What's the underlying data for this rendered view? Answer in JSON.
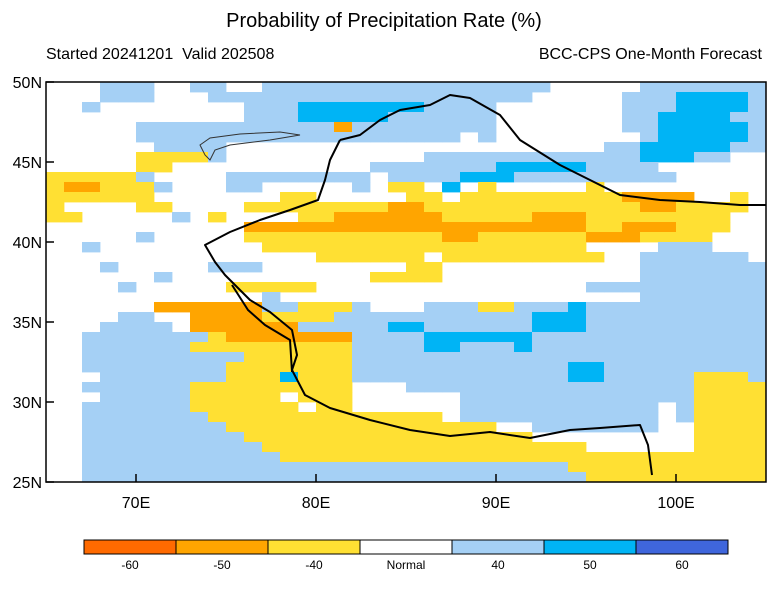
{
  "header": {
    "title": "Probability of Precipitation Rate (%)",
    "started": "Started 20241201",
    "valid": "Valid 202508",
    "model": "BCC-CPS One-Month Forecast"
  },
  "map": {
    "lon_range": [
      65,
      105
    ],
    "lat_range": [
      25,
      50
    ],
    "lat_labels": [
      "50N",
      "45N",
      "40N",
      "35N",
      "30N",
      "25N"
    ],
    "lon_labels": [
      "70E",
      "80E",
      "90E",
      "100E"
    ],
    "grid_deg": 1.0
  },
  "colorbar": {
    "classes": [
      {
        "label": "-60",
        "color": "#ff6a00"
      },
      {
        "label": "-50",
        "color": "#ffa500"
      },
      {
        "label": "-40",
        "color": "#ffe033"
      },
      {
        "label": "Normal",
        "color": "#ffffff"
      },
      {
        "label": "40",
        "color": "#a5d0f5"
      },
      {
        "label": "50",
        "color": "#00b4f5"
      },
      {
        "label": "60",
        "color": "#3f66dc"
      }
    ]
  },
  "rows": [
    "...bbb..bb..bbbbbbbbbbbbbbbb.....bbbbbbb",
    "...bbb...bbbbbbbbbbbbbbbbbb.....bbbccccb",
    "..b........bbbcccccccbbbb.......bbbccccb",
    "...........bbbcccccbbbbbb.......bbccccbb",
    ".....bbbbbbbbbbbobbbbbbbb.......bbcccccb",
    ".....bbbbbbbbbbbbbbbbbb.b........bcccccb",
    "......bbbb.....................bbcccccbb",
    ".....yyyyb...........bbbbbbbbbbbbcccbb..",
    ".....yy...........bbbbbbbcccccbbbb......",
    "yyyyyb....bbbbbbbb.bbbbcccbbbbbbbbb.....",
    "yooyyyb...bb.....b.yy.c.y.....y.........",
    "yyyyyy.......yy.....yy.yyyyyyyyyoooo..y.",
    "y....yy....yyyyyyyyooyyyyyyyyyyyyooyyyy.",
    "yy.....b.y....yyooooooyyyyyoooyyyyyyyy..",
    "...........oooooooooooooooooooyyoooyyy..",
    ".....b.....yyyyyyyyyyyooyyyyyyoooyyyy...",
    "..b.........yyyyyyyyyyyyyyyyyy....bbb...",
    "...............yyyyyy.yyyyyyyyy..bbbbbb.",
    "...b.....bbb........yy...........bbbbbbb",
    "......b...........yyyy...........bbbbbbb",
    "....b.....yyyyy...............bbbbbbbbbb",
    "............b....................bbbbbbb",
    "......oooooobbyyyb...bbbyybbbcbbbbbbbbbb",
    "....bb..ooooyyyybbbbbbbbbbbcccbbbbbbbbbb",
    "...bbbb.oooooobbbbbccbbbbbbcccbbbbbbbbbb",
    "..bbbbbbbyooooooobbbbccccccbbbbbbbbbbbbb",
    "..bbbbbbyyyyyyyyybbbbccbbbcbbbbbbbbbbbbb",
    "..bbbbbbbbbyyyyyybbbbbbbbbbbbbbbbbbbbbbb",
    "..bbbbbbbbyyyyyyybbbbbbbbbbbbccbbbbbbbbb",
    "...bbbbbbbyyycyyybbbbbbbbbbbbccbbbbbyyyb",
    "..bbbbbbyyyyyyyyy...bbbbbbbbbbbbbbbbyyyy",
    "...bbbbbyyyyy.yyy......bbbbbbbbbbbbbyyyy",
    "..bbbbbbyyyyyy.yy......bbbbbbbbbbb.byyyy",
    "..bbbbbbbyyyyyyyyyyyyy.bbbbbbbbbbb.byyyy",
    "..bbbbbbbbyyyyyyyyyyyyyyy..bbbbbbb..yyyy",
    "..bbbbbbbbbyyyyyyyyyyyyyyyy.........yyyy",
    "..bbbbbbbbbbyyyyyyyyyyyyyyyyyy......yyyy",
    "..bbbbbbbbbbbyyyyyyyyyyyyyyyyyyyyyyyyyyy",
    "..bbbbbbbbbbbbbbbbbbbbbbbbbbbyyyyyyyyyyy",
    "..bbbbbbbbbbbbbbbbbbbbbbbbbbbbyyyyyyyyyy"
  ]
}
